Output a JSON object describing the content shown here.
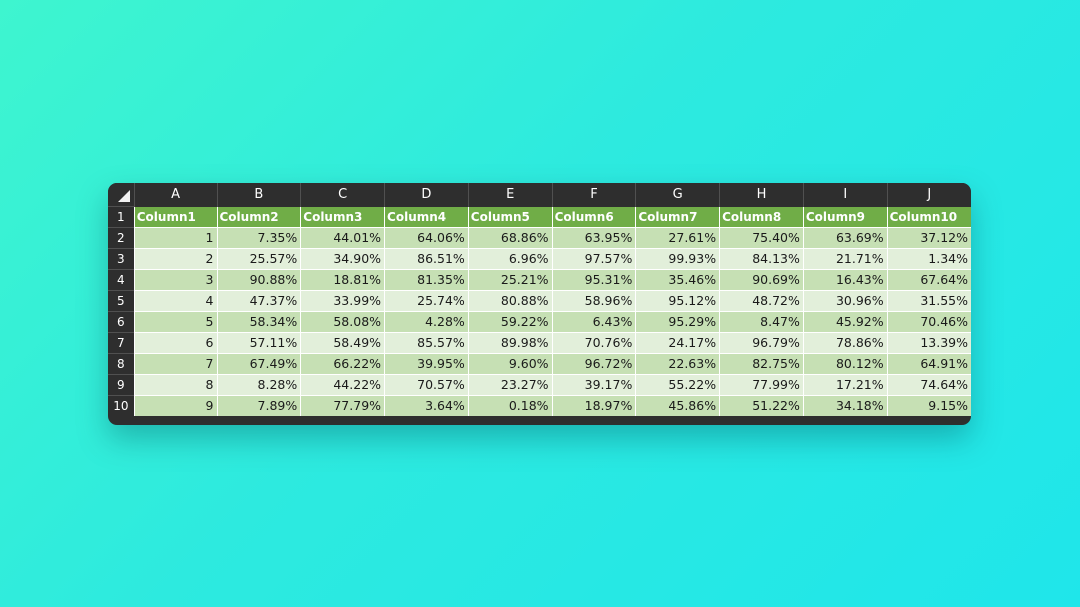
{
  "columns": [
    "A",
    "B",
    "C",
    "D",
    "E",
    "F",
    "G",
    "H",
    "I",
    "J"
  ],
  "row_numbers": [
    "1",
    "2",
    "3",
    "4",
    "5",
    "6",
    "7",
    "8",
    "9",
    "10"
  ],
  "headers": [
    "Column1",
    "Column2",
    "Column3",
    "Column4",
    "Column5",
    "Column6",
    "Column7",
    "Column8",
    "Column9",
    "Column10"
  ],
  "rows": [
    [
      "1",
      "7.35%",
      "44.01%",
      "64.06%",
      "68.86%",
      "63.95%",
      "27.61%",
      "75.40%",
      "63.69%",
      "37.12%"
    ],
    [
      "2",
      "25.57%",
      "34.90%",
      "86.51%",
      "6.96%",
      "97.57%",
      "99.93%",
      "84.13%",
      "21.71%",
      "1.34%"
    ],
    [
      "3",
      "90.88%",
      "18.81%",
      "81.35%",
      "25.21%",
      "95.31%",
      "35.46%",
      "90.69%",
      "16.43%",
      "67.64%"
    ],
    [
      "4",
      "47.37%",
      "33.99%",
      "25.74%",
      "80.88%",
      "58.96%",
      "95.12%",
      "48.72%",
      "30.96%",
      "31.55%"
    ],
    [
      "5",
      "58.34%",
      "58.08%",
      "4.28%",
      "59.22%",
      "6.43%",
      "95.29%",
      "8.47%",
      "45.92%",
      "70.46%"
    ],
    [
      "6",
      "57.11%",
      "58.49%",
      "85.57%",
      "89.98%",
      "70.76%",
      "24.17%",
      "96.79%",
      "78.86%",
      "13.39%"
    ],
    [
      "7",
      "67.49%",
      "66.22%",
      "39.95%",
      "9.60%",
      "96.72%",
      "22.63%",
      "82.75%",
      "80.12%",
      "64.91%"
    ],
    [
      "8",
      "8.28%",
      "44.22%",
      "70.57%",
      "23.27%",
      "39.17%",
      "55.22%",
      "77.99%",
      "17.21%",
      "74.64%"
    ],
    [
      "9",
      "7.89%",
      "77.79%",
      "3.64%",
      "0.18%",
      "18.97%",
      "45.86%",
      "51.22%",
      "34.18%",
      "9.15%"
    ]
  ],
  "colors": {
    "header_green": "#70ad47",
    "row_dark": "#c6e0b4",
    "row_light": "#e2efda",
    "grid_chrome": "#2e2e2e",
    "background_start": "#3ef5cf",
    "background_end": "#1fe6ea"
  },
  "icons": {
    "select_all": "select-all-triangle-icon"
  }
}
